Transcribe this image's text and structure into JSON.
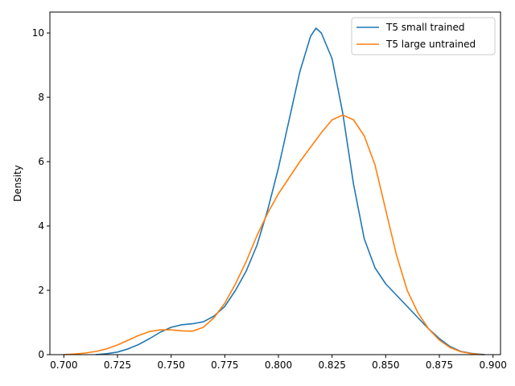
{
  "chart_data": {
    "type": "line",
    "title": "",
    "xlabel": "",
    "ylabel": "Density",
    "xlim": [
      0.6935,
      0.9035
    ],
    "ylim": [
      0,
      10.65
    ],
    "xticks": [
      0.7,
      0.725,
      0.75,
      0.775,
      0.8,
      0.825,
      0.85,
      0.875,
      0.9
    ],
    "xtick_labels": [
      "0.700",
      "0.725",
      "0.750",
      "0.775",
      "0.800",
      "0.825",
      "0.850",
      "0.875",
      "0.900"
    ],
    "yticks": [
      0,
      2,
      4,
      6,
      8,
      10
    ],
    "ytick_labels": [
      "0",
      "2",
      "4",
      "6",
      "8",
      "10"
    ],
    "grid": false,
    "legend": "top-right",
    "series": [
      {
        "name": "T5 small trained",
        "color": "#1f77b4",
        "points": [
          [
            0.715,
            0.0
          ],
          [
            0.72,
            0.03
          ],
          [
            0.725,
            0.08
          ],
          [
            0.73,
            0.18
          ],
          [
            0.735,
            0.32
          ],
          [
            0.74,
            0.5
          ],
          [
            0.745,
            0.7
          ],
          [
            0.75,
            0.85
          ],
          [
            0.755,
            0.93
          ],
          [
            0.76,
            0.96
          ],
          [
            0.765,
            1.02
          ],
          [
            0.77,
            1.2
          ],
          [
            0.775,
            1.5
          ],
          [
            0.78,
            2.0
          ],
          [
            0.785,
            2.6
          ],
          [
            0.79,
            3.4
          ],
          [
            0.795,
            4.5
          ],
          [
            0.8,
            5.8
          ],
          [
            0.805,
            7.3
          ],
          [
            0.81,
            8.8
          ],
          [
            0.815,
            9.9
          ],
          [
            0.8175,
            10.15
          ],
          [
            0.82,
            10.0
          ],
          [
            0.825,
            9.2
          ],
          [
            0.83,
            7.5
          ],
          [
            0.835,
            5.3
          ],
          [
            0.84,
            3.6
          ],
          [
            0.845,
            2.7
          ],
          [
            0.85,
            2.2
          ],
          [
            0.855,
            1.85
          ],
          [
            0.86,
            1.5
          ],
          [
            0.865,
            1.15
          ],
          [
            0.87,
            0.8
          ],
          [
            0.875,
            0.5
          ],
          [
            0.88,
            0.25
          ],
          [
            0.885,
            0.1
          ],
          [
            0.89,
            0.04
          ],
          [
            0.896,
            0.0
          ]
        ]
      },
      {
        "name": "T5 large untrained",
        "color": "#ff7f0e",
        "points": [
          [
            0.7,
            0.0
          ],
          [
            0.705,
            0.02
          ],
          [
            0.71,
            0.05
          ],
          [
            0.715,
            0.1
          ],
          [
            0.72,
            0.18
          ],
          [
            0.725,
            0.3
          ],
          [
            0.73,
            0.45
          ],
          [
            0.735,
            0.6
          ],
          [
            0.74,
            0.72
          ],
          [
            0.745,
            0.77
          ],
          [
            0.75,
            0.77
          ],
          [
            0.755,
            0.74
          ],
          [
            0.76,
            0.73
          ],
          [
            0.765,
            0.85
          ],
          [
            0.77,
            1.15
          ],
          [
            0.775,
            1.6
          ],
          [
            0.78,
            2.2
          ],
          [
            0.785,
            2.9
          ],
          [
            0.79,
            3.7
          ],
          [
            0.795,
            4.4
          ],
          [
            0.8,
            5.0
          ],
          [
            0.805,
            5.5
          ],
          [
            0.81,
            6.0
          ],
          [
            0.815,
            6.45
          ],
          [
            0.82,
            6.9
          ],
          [
            0.825,
            7.3
          ],
          [
            0.83,
            7.45
          ],
          [
            0.835,
            7.3
          ],
          [
            0.84,
            6.8
          ],
          [
            0.845,
            5.9
          ],
          [
            0.85,
            4.5
          ],
          [
            0.855,
            3.1
          ],
          [
            0.86,
            2.0
          ],
          [
            0.865,
            1.3
          ],
          [
            0.87,
            0.8
          ],
          [
            0.875,
            0.45
          ],
          [
            0.88,
            0.22
          ],
          [
            0.885,
            0.09
          ],
          [
            0.89,
            0.03
          ],
          [
            0.895,
            0.0
          ]
        ]
      }
    ]
  }
}
